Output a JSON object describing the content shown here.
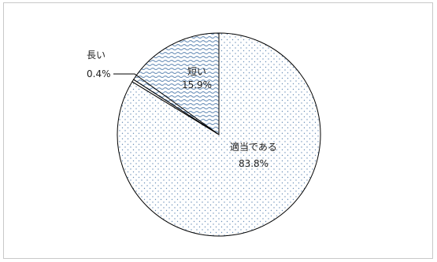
{
  "chart_data": {
    "type": "pie",
    "title": "",
    "slices": [
      {
        "label": "適当である",
        "percent_label": "83.8%",
        "value": 83.8,
        "color": "#dbe5f1",
        "pattern": "dots"
      },
      {
        "label": "長い",
        "percent_label": "0.4%",
        "value": 0.4,
        "color": "#ffffff",
        "pattern": "solid"
      },
      {
        "label": "短い",
        "percent_label": "15.9%",
        "value": 15.9,
        "color": "#dbe5f1",
        "pattern": "waves"
      }
    ],
    "start_angle_deg": 0,
    "direction": "clockwise",
    "legend": "none"
  }
}
